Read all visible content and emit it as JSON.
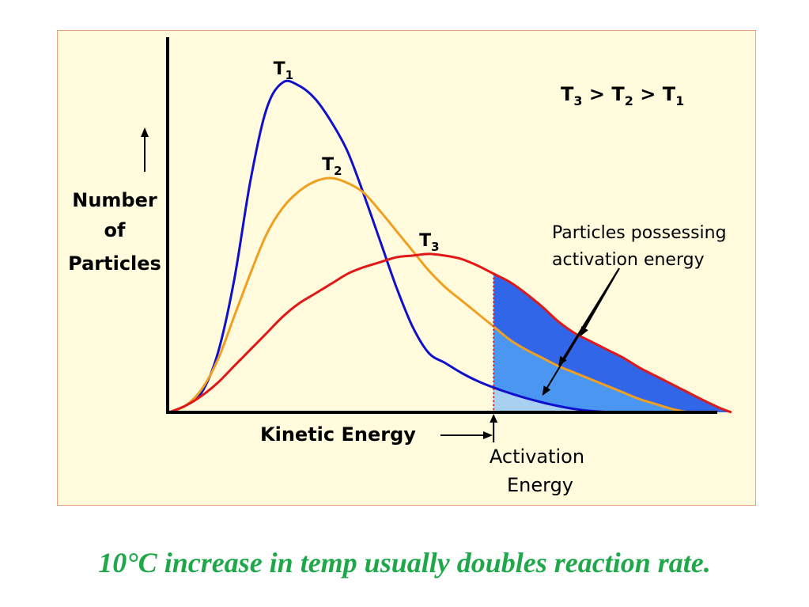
{
  "chart_data": {
    "type": "line",
    "x_label": "Kinetic Energy",
    "y_label_lines": [
      "Number",
      "of",
      "Particles"
    ],
    "inequality": {
      "parts": [
        "T",
        "3",
        " > ",
        "T",
        "2",
        " > ",
        "T",
        "1"
      ]
    },
    "series": [
      {
        "name": "T",
        "sub": "1",
        "color": "#1010cc",
        "x": [
          0.0,
          0.03,
          0.06,
          0.09,
          0.12,
          0.15,
          0.18,
          0.21,
          0.24,
          0.27,
          0.3,
          0.33,
          0.36,
          0.39,
          0.42,
          0.45,
          0.48,
          0.51,
          0.54,
          0.57,
          0.6,
          0.63,
          0.66,
          0.69,
          0.72,
          0.75,
          0.78,
          0.81,
          0.84
        ],
        "y": [
          0.0,
          0.02,
          0.06,
          0.18,
          0.4,
          0.7,
          0.92,
          1.0,
          0.99,
          0.95,
          0.88,
          0.79,
          0.66,
          0.52,
          0.38,
          0.26,
          0.18,
          0.15,
          0.12,
          0.095,
          0.075,
          0.058,
          0.043,
          0.03,
          0.019,
          0.01,
          0.004,
          0.001,
          0.0
        ]
      },
      {
        "name": "T",
        "sub": "2",
        "color": "#f0a020",
        "x": [
          0.0,
          0.03,
          0.06,
          0.09,
          0.12,
          0.15,
          0.18,
          0.21,
          0.24,
          0.27,
          0.3,
          0.33,
          0.36,
          0.39,
          0.42,
          0.45,
          0.48,
          0.51,
          0.54,
          0.57,
          0.6,
          0.63,
          0.66,
          0.69,
          0.72,
          0.75,
          0.78,
          0.81,
          0.84,
          0.87,
          0.9,
          0.93,
          0.96
        ],
        "y": [
          0.0,
          0.02,
          0.07,
          0.16,
          0.29,
          0.42,
          0.54,
          0.62,
          0.67,
          0.7,
          0.71,
          0.695,
          0.665,
          0.61,
          0.55,
          0.49,
          0.43,
          0.38,
          0.34,
          0.3,
          0.26,
          0.22,
          0.19,
          0.165,
          0.14,
          0.12,
          0.1,
          0.08,
          0.06,
          0.04,
          0.025,
          0.01,
          0.0
        ]
      },
      {
        "name": "T",
        "sub": "3",
        "color": "#e01818",
        "x": [
          0.0,
          0.03,
          0.06,
          0.09,
          0.12,
          0.15,
          0.18,
          0.21,
          0.24,
          0.27,
          0.3,
          0.33,
          0.36,
          0.39,
          0.42,
          0.45,
          0.48,
          0.51,
          0.54,
          0.57,
          0.6,
          0.63,
          0.66,
          0.69,
          0.72,
          0.75,
          0.78,
          0.81,
          0.84,
          0.87,
          0.9,
          0.93,
          0.96,
          0.99,
          1.02,
          1.04
        ],
        "y": [
          0.0,
          0.02,
          0.05,
          0.09,
          0.14,
          0.19,
          0.24,
          0.29,
          0.33,
          0.36,
          0.39,
          0.42,
          0.44,
          0.455,
          0.47,
          0.475,
          0.48,
          0.475,
          0.465,
          0.445,
          0.42,
          0.395,
          0.36,
          0.32,
          0.275,
          0.24,
          0.215,
          0.19,
          0.165,
          0.135,
          0.11,
          0.085,
          0.06,
          0.035,
          0.012,
          0.0
        ]
      }
    ],
    "activation_energy_x": 0.6,
    "xlim": [
      0,
      1.1
    ],
    "ylim": [
      0,
      1.07
    ],
    "shading": {
      "T1": "#a8d0f0",
      "T2": "#4a96f0",
      "T3": "#3266e8"
    },
    "annotations": [
      {
        "name": "particles-note",
        "lines": [
          "Particles possessing",
          "activation energy"
        ]
      },
      {
        "name": "activation-label",
        "lines": [
          "Activation",
          "Energy"
        ]
      }
    ],
    "grid": false,
    "legend": "inline-labels"
  },
  "caption": "10°C increase in temp usually doubles reaction rate."
}
